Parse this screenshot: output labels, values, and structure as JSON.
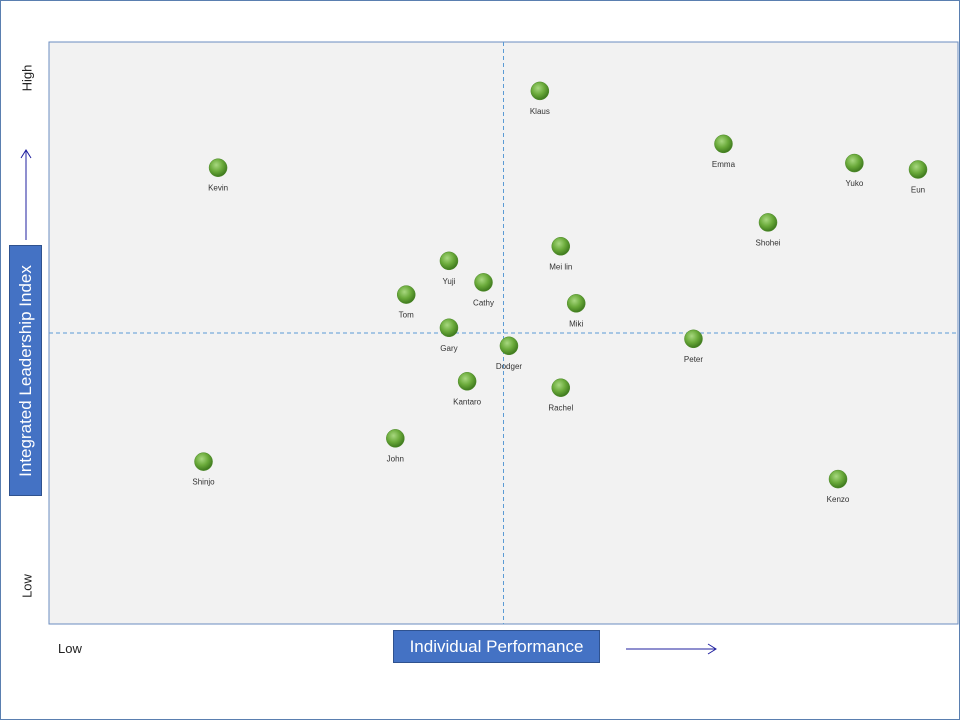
{
  "chart_data": {
    "type": "scatter",
    "xlabel": "Individual Performance",
    "ylabel": "Integrated Leadership Index",
    "x_low_label": "Low",
    "y_low_label": "Low",
    "y_high_label": "High",
    "xlim": [
      0,
      100
    ],
    "ylim": [
      0,
      100
    ],
    "midlines": {
      "x": 50,
      "y": 50
    },
    "grid": false,
    "colors": {
      "point": "#6aaa3a",
      "plot_background": "#f2f2f2",
      "axis_title_box": "#4472c4",
      "midline": "#5b9bd5",
      "arrow": "#1f1f9f"
    },
    "points": [
      {
        "label": "Klaus",
        "x": 54.0,
        "y": 91.6
      },
      {
        "label": "Kevin",
        "x": 18.6,
        "y": 78.4
      },
      {
        "label": "Emma",
        "x": 74.2,
        "y": 82.5
      },
      {
        "label": "Yuko",
        "x": 88.6,
        "y": 79.2
      },
      {
        "label": "Eun",
        "x": 95.6,
        "y": 78.1
      },
      {
        "label": "Shohei",
        "x": 79.1,
        "y": 69.0
      },
      {
        "label": "Mei lin",
        "x": 56.3,
        "y": 64.9
      },
      {
        "label": "Yuji",
        "x": 44.0,
        "y": 62.4
      },
      {
        "label": "Cathy",
        "x": 47.8,
        "y": 58.7
      },
      {
        "label": "Tom",
        "x": 39.3,
        "y": 56.6
      },
      {
        "label": "Miki",
        "x": 58.0,
        "y": 55.1
      },
      {
        "label": "Gary",
        "x": 44.0,
        "y": 50.9
      },
      {
        "label": "Dodger",
        "x": 50.6,
        "y": 47.8
      },
      {
        "label": "Peter",
        "x": 70.9,
        "y": 49.0
      },
      {
        "label": "Kantaro",
        "x": 46.0,
        "y": 41.7
      },
      {
        "label": "Rachel",
        "x": 56.3,
        "y": 40.6
      },
      {
        "label": "John",
        "x": 38.1,
        "y": 31.9
      },
      {
        "label": "Shinjo",
        "x": 17.0,
        "y": 27.9
      },
      {
        "label": "Kenzo",
        "x": 86.8,
        "y": 24.9
      }
    ]
  }
}
